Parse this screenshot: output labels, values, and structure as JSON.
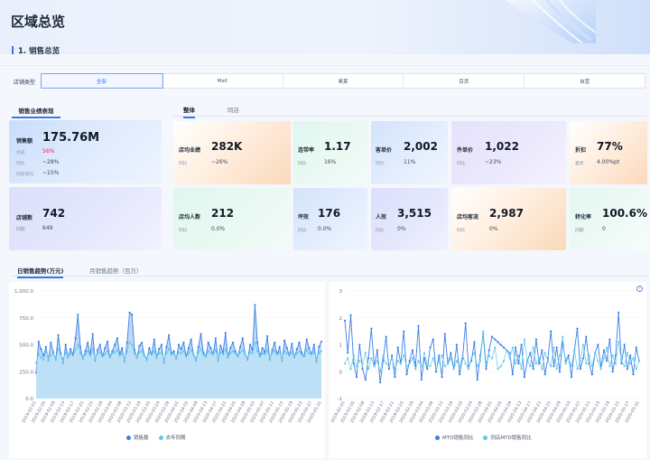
{
  "title": "区域总览",
  "section": "1. 销售总览",
  "filter": {
    "label": "店铺类型",
    "options": [
      "全部",
      "Mall",
      "奥莱",
      "百货",
      "自营"
    ],
    "selected": "全部"
  },
  "left_tab": "销售业绩表现",
  "sub_tabs": [
    "整体",
    "同店"
  ],
  "cards": {
    "sales": {
      "label": "销售额",
      "value": "175.76M",
      "rows": [
        {
          "k": "达成",
          "v": "56%",
          "color": "#d6284a"
        },
        {
          "k": "同比",
          "v": "~28%",
          "color": "#3b4658"
        },
        {
          "k": "同店同比",
          "v": "~15%",
          "color": "#3b4658"
        }
      ]
    },
    "stores": {
      "label": "店铺数",
      "value": "742",
      "sub_k": "同期",
      "sub_v": "649"
    },
    "avg_store": {
      "label": "店均业绩",
      "value": "282K",
      "sub_k": "同比",
      "sub_v": "~26%"
    },
    "attach": {
      "label": "连带率",
      "value": "1.17",
      "sub_k": "同比",
      "sub_v": "16%"
    },
    "atv": {
      "label": "客单价",
      "value": "2,002",
      "sub_k": "同比",
      "sub_v": "11%"
    },
    "aup": {
      "label": "件单价",
      "value": "1,022",
      "sub_k": "同比",
      "sub_v": "~23%"
    },
    "discount": {
      "label": "折扣",
      "value": "77%",
      "sub_k": "差异",
      "sub_v": "4.00%pt"
    },
    "avg_staff": {
      "label": "店均人数",
      "value": "212",
      "sub_k": "同比",
      "sub_v": "0.0%"
    },
    "sqm": {
      "label": "坪效",
      "value": "176",
      "sub_k": "同比",
      "sub_v": "0.0%"
    },
    "per_person": {
      "label": "人效",
      "value": "3,515",
      "sub_k": "同比",
      "sub_v": "0%"
    },
    "traffic": {
      "label": "店均客流",
      "value": "2,987",
      "sub_k": "同比",
      "sub_v": "0%"
    },
    "conversion": {
      "label": "转化率",
      "value": "100.6%",
      "sub_k": "同期",
      "sub_v": "0"
    }
  },
  "chart_tabs": [
    "日销售趋势(万元)",
    "月销售趋势（百万）"
  ],
  "colors": {
    "series_main": "#3a7fe6",
    "series_compare": "#5ec8e8"
  },
  "chart_data": [
    {
      "type": "area",
      "title": "日销售趋势(万元)",
      "ylim": [
        0,
        1000
      ],
      "yticks": [
        "0.0",
        "250.0",
        "500.0",
        "750.0",
        "1,000.0"
      ],
      "xticks": [
        "2019-02-01",
        "2019-02-05",
        "2019-02-09",
        "2019-02-13",
        "2019-02-17",
        "2019-02-21",
        "2019-02-25",
        "2019-02-29",
        "2020-03-04",
        "2020-03-08",
        "2020-03-12",
        "2020-03-16",
        "2020-03-20",
        "2020-03-24",
        "2020-03-28",
        "2020-04-01",
        "2020-04-05",
        "2020-04-09",
        "2020-04-13",
        "2020-04-17",
        "2020-04-21",
        "2020-04-25",
        "2020-04-29",
        "2020-05-03",
        "2020-05-07",
        "2020-05-11",
        "2020-05-15",
        "2020-05-19",
        "2020-05-23",
        "2020-05-27",
        "2020-05-31"
      ],
      "series": [
        {
          "name": "销售额",
          "values": [
            240,
            530,
            460,
            400,
            480,
            350,
            520,
            430,
            360,
            590,
            420,
            330,
            500,
            380,
            460,
            410,
            560,
            780,
            480,
            370,
            440,
            520,
            410,
            600,
            350,
            450,
            500,
            390,
            470,
            530,
            380,
            440,
            500,
            560,
            410,
            470,
            340,
            520,
            800,
            780,
            450,
            380,
            490,
            520,
            400,
            360,
            470,
            410,
            550,
            380,
            460,
            500,
            330,
            480,
            590,
            420,
            440,
            370,
            500,
            460,
            520,
            390,
            470,
            550,
            410,
            350,
            480,
            600,
            430,
            390,
            520,
            470,
            410,
            560,
            350,
            490,
            430,
            610,
            380,
            470,
            520,
            440,
            390,
            480,
            560,
            410,
            360,
            500,
            450,
            870,
            520,
            390,
            470,
            430,
            580,
            360,
            450,
            520,
            410,
            480,
            350,
            540,
            470,
            400,
            510,
            380,
            460,
            520,
            430,
            390,
            550,
            470,
            410,
            500,
            340,
            480,
            530
          ]
        },
        {
          "name": "去年同期",
          "values": [
            330,
            420,
            380,
            360,
            440,
            390,
            400,
            420,
            380,
            460,
            410,
            370,
            430,
            390,
            420,
            400,
            450,
            500,
            420,
            380,
            410,
            440,
            400,
            460,
            380,
            420,
            430,
            390,
            410,
            440,
            380,
            420,
            430,
            450,
            400,
            420,
            370,
            440,
            520,
            500,
            420,
            390,
            430,
            440,
            400,
            380,
            420,
            410,
            440,
            390,
            420,
            430,
            370,
            420,
            460,
            410,
            420,
            380,
            430,
            420,
            440,
            390,
            420,
            450,
            410,
            380,
            430,
            460,
            410,
            390,
            440,
            420,
            410,
            450,
            380,
            430,
            410,
            460,
            390,
            420,
            440,
            420,
            390,
            430,
            450,
            410,
            380,
            430,
            420,
            520,
            440,
            390,
            420,
            410,
            450,
            380,
            420,
            440,
            410,
            430,
            380,
            440,
            420,
            400,
            430,
            390,
            420,
            440,
            410,
            390,
            450,
            420,
            410,
            430,
            380,
            420,
            440
          ]
        }
      ],
      "legend": [
        "销售额",
        "去年同期"
      ]
    },
    {
      "type": "line",
      "title": "MTD销售同比",
      "ylim": [
        -1,
        3
      ],
      "yticks": [
        "-1",
        "0",
        "1",
        "2",
        "3"
      ],
      "xticks": [
        "2019-02-01",
        "2019-02-05",
        "2019-02-09",
        "2019-02-13",
        "2019-02-17",
        "2019-02-21",
        "2019-02-25",
        "2020-02-29",
        "2020-03-04",
        "2020-03-08",
        "2020-03-12",
        "2020-03-16",
        "2020-03-20",
        "2020-03-24",
        "2020-03-28",
        "2020-04-01",
        "2020-04-05",
        "2020-04-09",
        "2020-04-13",
        "2020-04-17",
        "2020-04-21",
        "2020-04-25",
        "2020-04-29",
        "2020-05-03",
        "2020-05-07",
        "2020-05-11",
        "2020-05-15",
        "2020-05-19",
        "2020-05-23",
        "2020-05-27",
        "2020-05-31"
      ],
      "series": [
        {
          "name": "MTD销售同比",
          "values": [
            1.9,
            0.7,
            2.1,
            0.3,
            -0.2,
            1.0,
            0.1,
            -0.3,
            0.5,
            1.6,
            0.2,
            0.8,
            -0.4,
            0.4,
            1.3,
            0.1,
            0.6,
            -0.2,
            0.9,
            0.3,
            1.5,
            -0.1,
            0.4,
            0.8,
            0.2,
            1.7,
            -0.3,
            0.5,
            0.1,
            0.9,
            1.2,
            0.0,
            0.6,
            -0.2,
            1.4,
            0.3,
            0.7,
            0.1,
            1.0,
            -0.1,
            0.5,
            1.8,
            0.2,
            0.4,
            1.1,
            -0.3,
            0.6,
            1.4,
            0.1,
            0.8,
            1.3,
            1.2,
            1.1,
            1.0,
            0.9,
            0.8,
            0.7,
            -0.1,
            0.9,
            0.3,
            1.0,
            -0.2,
            0.4,
            0.7,
            0.1,
            1.2,
            0.3,
            0.8,
            -0.1,
            0.5,
            1.5,
            0.2,
            0.9,
            0.0,
            1.1,
            0.4,
            0.6,
            -0.2,
            0.8,
            1.6,
            0.1,
            0.5,
            1.3,
            0.3,
            -0.1,
            0.7,
            1.0,
            0.2,
            0.8,
            0.4,
            1.2,
            0.0,
            0.6,
            2.2,
            0.3,
            1.0,
            0.1,
            0.6,
            -0.1,
            0.9,
            0.4
          ]
        },
        {
          "name": "同店MTD销售同比",
          "values": [
            0.3,
            0.5,
            0.1,
            0.6,
            0.2,
            0.4,
            0.3,
            0.7,
            0.1,
            0.5,
            0.2,
            0.4,
            0.0,
            0.6,
            0.3,
            0.2,
            0.5,
            0.1,
            0.4,
            0.3,
            0.6,
            0.2,
            0.3,
            0.5,
            0.1,
            0.4,
            0.2,
            0.7,
            0.3,
            0.2,
            0.5,
            0.1,
            0.4,
            0.6,
            0.2,
            0.3,
            0.5,
            0.1,
            0.4,
            0.2,
            0.6,
            0.3,
            0.1,
            0.5,
            0.7,
            0.2,
            0.4,
            1.5,
            0.3,
            0.6,
            0.5,
            0.9,
            0.1,
            0.2,
            0.4,
            0.8,
            0.5,
            0.9,
            0.3,
            0.6,
            0.1,
            1.2,
            0.4,
            0.2,
            0.9,
            0.3,
            0.5,
            0.1,
            0.7,
            0.4,
            0.2,
            0.9,
            0.1,
            0.6,
            1.3,
            0.3,
            0.5,
            0.2,
            0.8,
            0.1,
            0.4,
            1.0,
            0.3,
            0.6,
            0.2,
            0.7,
            0.4,
            0.1,
            0.5,
            0.9,
            0.2,
            0.6,
            0.3,
            1.1,
            0.4,
            0.2,
            0.7,
            0.3,
            0.5,
            0.1,
            0.4
          ]
        }
      ],
      "legend": [
        "MTD销售同比",
        "同店MTD销售同比"
      ]
    }
  ]
}
